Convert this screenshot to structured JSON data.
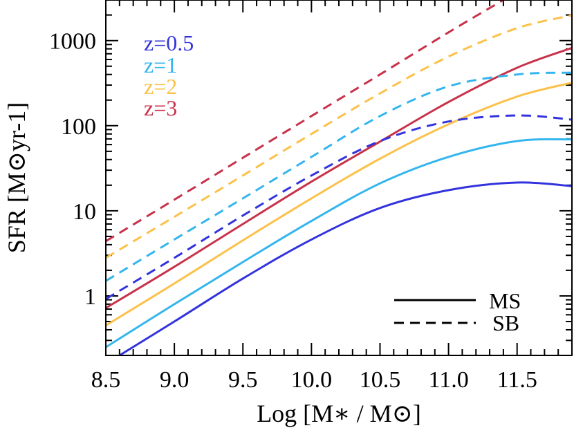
{
  "chart_data": {
    "type": "line",
    "title": "",
    "xlabel": "Log [M∗ / M⊙]",
    "ylabel": "SFR [M⊙yr-1]",
    "xlim": [
      8.5,
      11.9
    ],
    "ylim": [
      0.2,
      3000
    ],
    "yscale": "log",
    "x_ticks": [
      "8.5",
      "9.0",
      "9.5",
      "10.0",
      "10.5",
      "11.0",
      "11.5"
    ],
    "y_ticks": [
      "1",
      "10",
      "100",
      "1000"
    ],
    "style_legend": [
      {
        "label": "MS",
        "dash": "solid"
      },
      {
        "label": "SB",
        "dash": "dashed"
      }
    ],
    "redshift_legend": [
      {
        "label": "z=0.5",
        "color": "#3333dd"
      },
      {
        "label": "z=1",
        "color": "#33b5ee"
      },
      {
        "label": "z=2",
        "color": "#fbc14a"
      },
      {
        "label": "z=3",
        "color": "#c8324a"
      }
    ],
    "series": [
      {
        "name": "z=0.5",
        "style": "MS",
        "color": "#3333dd",
        "x": [
          8.6,
          9.0,
          9.5,
          10.0,
          10.5,
          11.0,
          11.5,
          11.9
        ],
        "values": [
          0.2,
          0.5,
          1.6,
          4.6,
          10.8,
          17.5,
          21.5,
          19.5
        ]
      },
      {
        "name": "z=1",
        "style": "MS",
        "color": "#33b5ee",
        "x": [
          8.5,
          9.0,
          9.5,
          10.0,
          10.5,
          11.0,
          11.5,
          11.9
        ],
        "values": [
          0.25,
          0.8,
          2.5,
          7.6,
          21,
          43,
          66,
          69
        ]
      },
      {
        "name": "z=2",
        "style": "MS",
        "color": "#fbc14a",
        "x": [
          8.5,
          9.0,
          9.5,
          10.0,
          10.5,
          11.0,
          11.5,
          11.9
        ],
        "values": [
          0.45,
          1.4,
          4.5,
          14,
          41,
          104,
          220,
          320
        ]
      },
      {
        "name": "z=3",
        "style": "MS",
        "color": "#c8324a",
        "x": [
          8.5,
          9.0,
          9.5,
          10.0,
          10.5,
          11.0,
          11.5,
          11.9
        ],
        "values": [
          0.72,
          2.2,
          7.0,
          22,
          65,
          190,
          480,
          820
        ]
      },
      {
        "name": "z=0.5",
        "style": "SB",
        "color": "#3333dd",
        "x": [
          8.5,
          9.0,
          9.5,
          10.0,
          10.5,
          11.0,
          11.5,
          11.9
        ],
        "values": [
          0.92,
          2.8,
          8.8,
          26,
          66,
          112,
          132,
          118
        ]
      },
      {
        "name": "z=1",
        "style": "SB",
        "color": "#33b5ee",
        "x": [
          8.5,
          9.0,
          9.5,
          10.0,
          10.5,
          11.0,
          11.5,
          11.9
        ],
        "values": [
          1.5,
          4.6,
          14,
          43,
          130,
          290,
          400,
          420
        ]
      },
      {
        "name": "z=2",
        "style": "SB",
        "color": "#fbc14a",
        "x": [
          8.5,
          9.0,
          9.5,
          10.0,
          10.5,
          11.0,
          11.5,
          11.9
        ],
        "values": [
          2.8,
          8.5,
          26,
          80,
          240,
          650,
          1400,
          1980
        ]
      },
      {
        "name": "z=3",
        "style": "SB",
        "color": "#c8324a",
        "x": [
          8.5,
          9.0,
          9.5,
          10.0,
          10.5,
          11.0,
          11.4
        ],
        "values": [
          4.4,
          13.5,
          42,
          130,
          400,
          1250,
          3000
        ]
      }
    ]
  }
}
